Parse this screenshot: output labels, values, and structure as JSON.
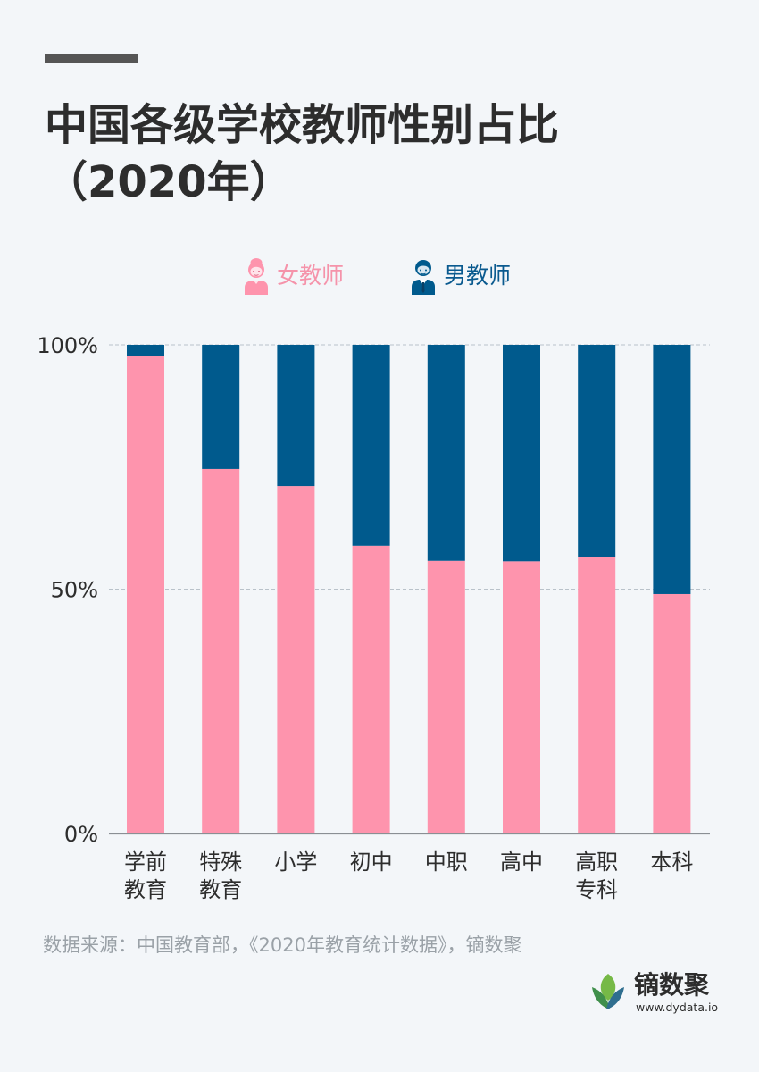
{
  "title": {
    "line1": "中国各级学校教师性别占比",
    "line2": "（2020年）"
  },
  "legend": {
    "female": "女教师",
    "male": "男教师"
  },
  "colors": {
    "female": "#fe94ad",
    "male": "#005a8d",
    "background": "#f3f6f9",
    "grid": "#b9c2ca",
    "axis": "#8a8f94"
  },
  "icons": {
    "female": "female-teacher-icon",
    "male": "male-teacher-icon",
    "brand": "leaf-logo-icon"
  },
  "chart_data": {
    "type": "bar",
    "stacked": true,
    "categories": [
      [
        "学前",
        "教育"
      ],
      [
        "特殊",
        "教育"
      ],
      [
        "小学"
      ],
      [
        "初中"
      ],
      [
        "中职"
      ],
      [
        "高中"
      ],
      [
        "高职",
        "专科"
      ],
      [
        "本科"
      ]
    ],
    "series": [
      {
        "name": "女教师",
        "values": [
          97.8,
          74.6,
          71.1,
          58.9,
          55.8,
          55.7,
          56.5,
          49.0
        ]
      },
      {
        "name": "男教师",
        "values": [
          2.2,
          25.4,
          28.9,
          41.1,
          44.2,
          44.3,
          43.5,
          51.0
        ]
      }
    ],
    "yticks": [
      "0%",
      "50%",
      "100%"
    ],
    "ylim": [
      0,
      100
    ],
    "grid": true,
    "legend_position": "top"
  },
  "source": "数据来源：中国教育部，《2020年教育统计数据》，镝数聚",
  "brand": {
    "name": "镝数聚",
    "url": "www.dydata.io"
  }
}
